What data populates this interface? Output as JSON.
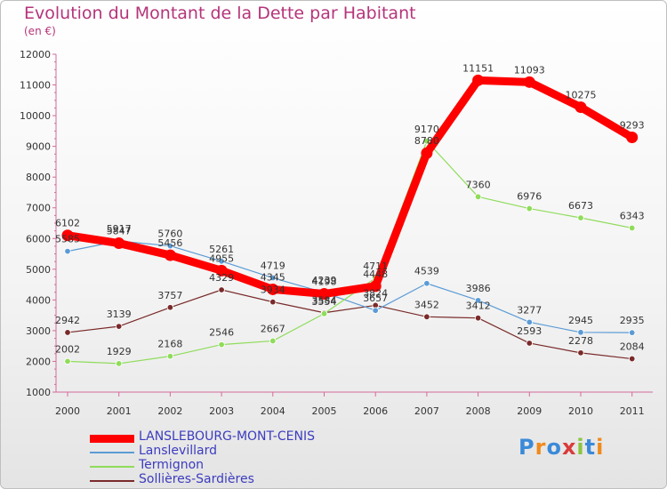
{
  "title": "Evolution du Montant de la Dette par Habitant",
  "subtitle": "(en €)",
  "logo": "Proxiti",
  "chart_data": {
    "type": "line",
    "title": "Evolution du Montant de la Dette par Habitant",
    "subtitle": "(en €)",
    "x": [
      "2000",
      "2001",
      "2002",
      "2003",
      "2004",
      "2005",
      "2006",
      "2007",
      "2008",
      "2009",
      "2010",
      "2011"
    ],
    "ylim": [
      1000,
      12000
    ],
    "yticks": [
      1000,
      2000,
      3000,
      4000,
      5000,
      6000,
      7000,
      8000,
      9000,
      10000,
      11000,
      12000
    ],
    "grid": false,
    "legend": "bottom-left",
    "series": [
      {
        "name": "LANSLEBOURG-MONT-CENIS",
        "color": "#ff0000",
        "values": [
          6102,
          5847,
          5456,
          4955,
          4345,
          4198,
          4448,
          8780,
          11151,
          11093,
          10275,
          9293
        ]
      },
      {
        "name": "Lanslevillard",
        "color": "#5b9bd5",
        "values": [
          5585,
          5917,
          5760,
          5261,
          4719,
          4239,
          3657,
          4539,
          3986,
          3277,
          2945,
          2935
        ]
      },
      {
        "name": "Termignon",
        "color": "#8fdc5a",
        "values": [
          2002,
          1929,
          2168,
          2546,
          2667,
          3554,
          4711,
          9170,
          7360,
          6976,
          6673,
          6343
        ]
      },
      {
        "name": "Sollières-Sardières",
        "color": "#7a2a2a",
        "values": [
          2942,
          3139,
          3757,
          4329,
          3934,
          3584,
          3824,
          3452,
          3412,
          2593,
          2278,
          2084
        ]
      }
    ]
  }
}
